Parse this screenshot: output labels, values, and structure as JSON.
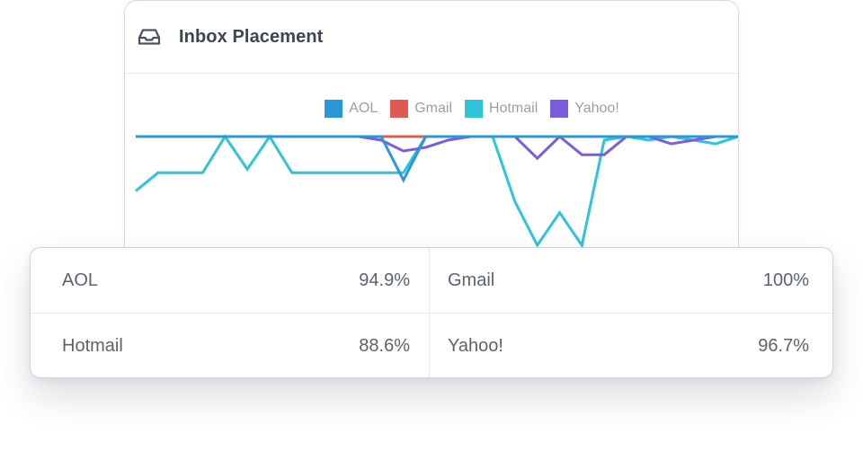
{
  "header": {
    "title": "Inbox Placement",
    "icon": "inbox-icon"
  },
  "colors": {
    "AOL": "#2a97d9",
    "Gmail": "#e05a50",
    "Hotmail": "#2ec4d9",
    "Yahoo!": "#7a5ce0"
  },
  "chart_data": {
    "type": "line",
    "xlabel": "",
    "ylabel": "",
    "ylim": [
      0,
      100
    ],
    "legend_position": "top",
    "x": [
      0,
      1,
      2,
      3,
      4,
      5,
      6,
      7,
      8,
      9,
      10,
      11,
      12,
      13,
      14,
      15,
      16,
      17,
      18,
      19,
      20,
      21,
      22,
      23,
      24,
      25,
      26,
      27
    ],
    "series": [
      {
        "name": "AOL",
        "values": [
          100,
          100,
          100,
          100,
          100,
          100,
          100,
          100,
          100,
          100,
          100,
          100,
          88,
          100,
          100,
          100,
          100,
          100,
          100,
          100,
          100,
          100,
          100,
          100,
          100,
          100,
          100,
          100
        ]
      },
      {
        "name": "Gmail",
        "values": [
          100,
          100,
          100,
          100,
          100,
          100,
          100,
          100,
          100,
          100,
          100,
          100,
          100,
          100,
          100,
          100,
          100,
          100,
          100,
          100,
          100,
          100,
          100,
          100,
          100,
          100,
          100,
          100
        ]
      },
      {
        "name": "Hotmail",
        "values": [
          85,
          90,
          90,
          90,
          100,
          91,
          100,
          90,
          90,
          90,
          90,
          90,
          90,
          100,
          100,
          100,
          100,
          82,
          70,
          79,
          70,
          99,
          100,
          99,
          100,
          99,
          98,
          100
        ]
      },
      {
        "name": "Yahoo!",
        "values": [
          100,
          100,
          100,
          100,
          100,
          100,
          100,
          100,
          100,
          100,
          100,
          99,
          96,
          97,
          99,
          100,
          100,
          100,
          94,
          100,
          95,
          95,
          100,
          100,
          98,
          99,
          100,
          100
        ]
      }
    ]
  },
  "summary": [
    {
      "label": "AOL",
      "value": "94.9%"
    },
    {
      "label": "Gmail",
      "value": "100%"
    },
    {
      "label": "Hotmail",
      "value": "88.6%"
    },
    {
      "label": "Yahoo!",
      "value": "96.7%"
    }
  ]
}
